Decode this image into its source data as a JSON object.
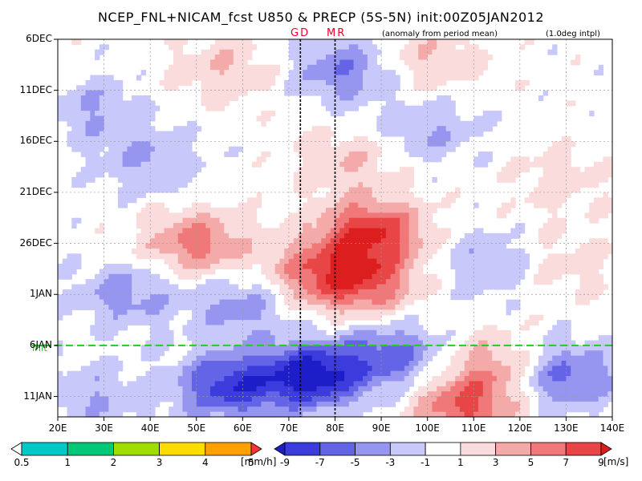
{
  "chart_data": {
    "type": "heatmap",
    "title": "NCEP_FNL+NICAM_fcst U850 & PRECP (5S-5N) init:00Z05JAN2012",
    "subtitle": "(anomaly from period mean)",
    "note": "(1.0deg intpl)",
    "xlabel": "",
    "ylabel": "",
    "x_tick_labels": [
      "20E",
      "30E",
      "40E",
      "50E",
      "60E",
      "70E",
      "80E",
      "90E",
      "100E",
      "110E",
      "120E",
      "130E",
      "140E"
    ],
    "y_tick_labels": [
      "6DEC",
      "11DEC",
      "16DEC",
      "21DEC",
      "26DEC",
      "1JAN",
      "6JAN",
      "11JAN"
    ],
    "xlim": [
      20,
      140
    ],
    "ylim_days_from_6DEC": [
      0,
      37
    ],
    "markers": [
      {
        "label": "GD",
        "lon": 72.5
      },
      {
        "label": "MR",
        "lon": 80
      }
    ],
    "init_line": {
      "label": "init",
      "day": 30,
      "color": "#22cc22"
    },
    "wind_anomaly_blobs": [
      {
        "lon": 50,
        "day": 20,
        "peak": 6
      },
      {
        "lon": 76,
        "day": 23,
        "peak": 6
      },
      {
        "lon": 88,
        "day": 19,
        "peak": 9
      },
      {
        "lon": 87,
        "day": 24,
        "peak": 6
      },
      {
        "lon": 56,
        "day": 3,
        "peak": 3
      },
      {
        "lon": 100,
        "day": 2,
        "peak": 3
      },
      {
        "lon": 83,
        "day": 12,
        "peak": 3
      },
      {
        "lon": 128,
        "day": 14,
        "peak": 2
      },
      {
        "lon": 130,
        "day": 22,
        "peak": 2
      },
      {
        "lon": 108,
        "day": 36,
        "peak": 7
      },
      {
        "lon": 115,
        "day": 32,
        "peak": 4
      },
      {
        "lon": 82,
        "day": 3,
        "peak": -5
      },
      {
        "lon": 28,
        "day": 7,
        "peak": -3
      },
      {
        "lon": 40,
        "day": 12,
        "peak": -3
      },
      {
        "lon": 100,
        "day": 9,
        "peak": -3
      },
      {
        "lon": 35,
        "day": 25,
        "peak": -4
      },
      {
        "lon": 60,
        "day": 26,
        "peak": -4
      },
      {
        "lon": 113,
        "day": 22,
        "peak": -3
      },
      {
        "lon": 75,
        "day": 33,
        "peak": -10
      },
      {
        "lon": 57,
        "day": 34,
        "peak": -8
      },
      {
        "lon": 92,
        "day": 31,
        "peak": -6
      },
      {
        "lon": 130,
        "day": 33,
        "peak": -6
      },
      {
        "lon": 28,
        "day": 35,
        "peak": -3
      }
    ],
    "legend_precip": {
      "unit": "[mm/h]",
      "levels": [
        "0.5",
        "1",
        "2",
        "3",
        "4",
        "5"
      ],
      "colors": [
        "#ffffff",
        "#00c8c8",
        "#00c878",
        "#a0dc00",
        "#ffdc00",
        "#ffa000",
        "#ff3232"
      ]
    },
    "legend_wind": {
      "unit": "[m/s]",
      "levels": [
        "-9",
        "-7",
        "-5",
        "-3",
        "-1",
        "1",
        "3",
        "5",
        "7",
        "9"
      ],
      "colors": [
        "#1e1ec8",
        "#3c3cdc",
        "#6464e6",
        "#9696f0",
        "#c8c8fa",
        "#ffffff",
        "#fadcdc",
        "#f5aaaa",
        "#f07878",
        "#e84646",
        "#dc1e1e"
      ]
    }
  }
}
